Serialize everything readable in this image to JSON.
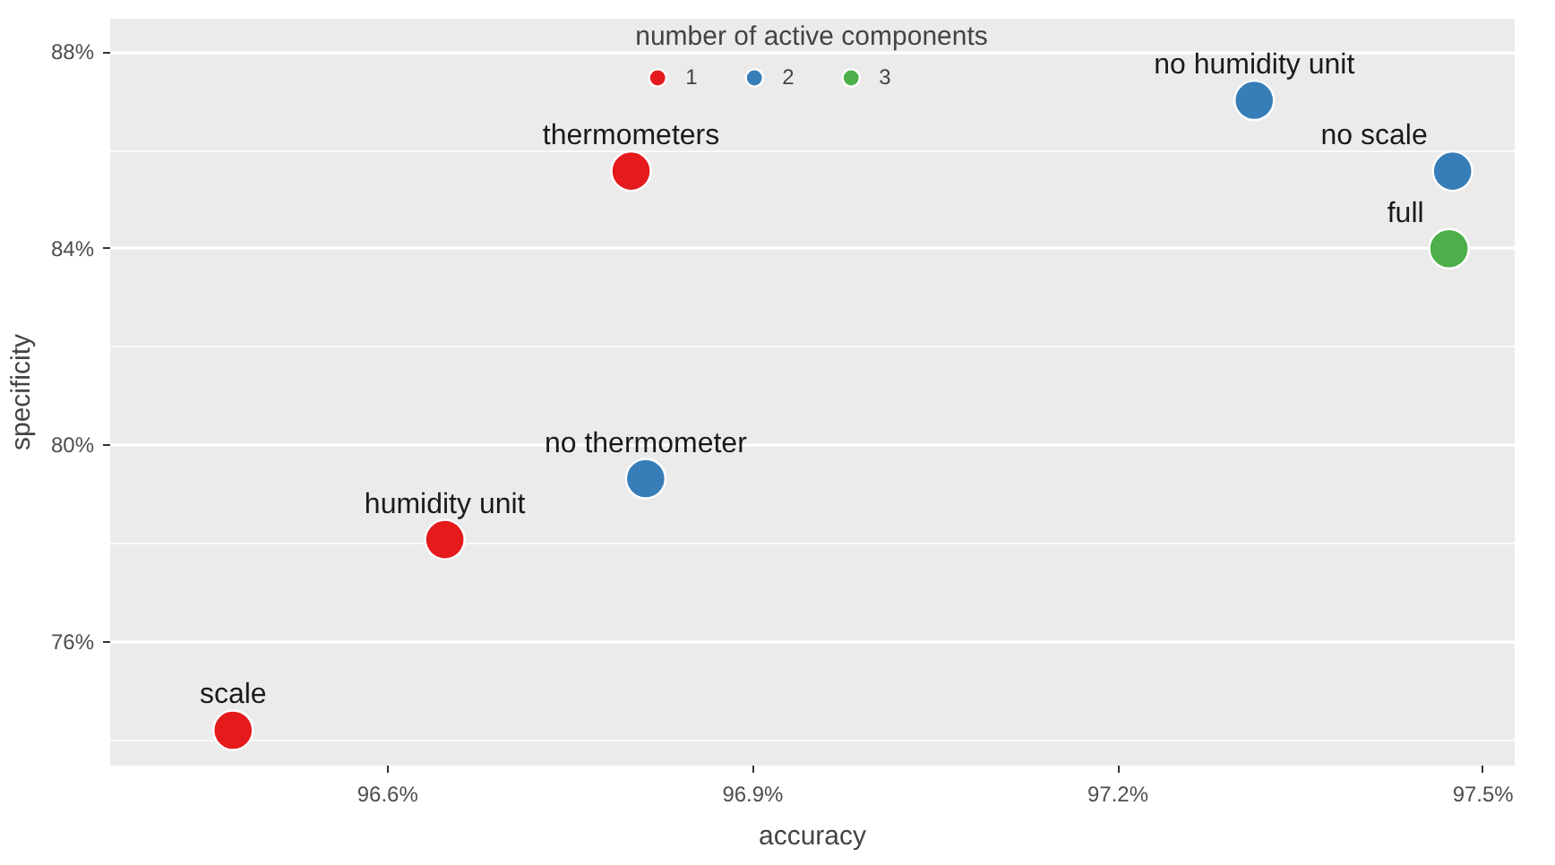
{
  "chart_data": {
    "type": "scatter",
    "xlabel": "accuracy",
    "ylabel": "specificity",
    "legend_title": "number of active components",
    "legend": "top",
    "grid": true,
    "marker": "circle",
    "xlim": [
      96.372,
      97.526
    ],
    "ylim": [
      73.48,
      88.68
    ],
    "xticks": [
      {
        "value": 96.6,
        "label": "96.6%"
      },
      {
        "value": 96.9,
        "label": "96.9%"
      },
      {
        "value": 97.2,
        "label": "97.2%"
      },
      {
        "value": 97.5,
        "label": "97.5%"
      }
    ],
    "yticks": [
      {
        "value": 76,
        "label": "76%"
      },
      {
        "value": 80,
        "label": "80%"
      },
      {
        "value": 84,
        "label": "84%"
      },
      {
        "value": 88,
        "label": "88%"
      }
    ],
    "series": [
      {
        "name": "1",
        "color": "#e41a1c",
        "x": [
          96.473,
          96.647,
          96.8
        ],
        "values": [
          74.2,
          78.08,
          85.58
        ]
      },
      {
        "name": "2",
        "color": "#377eb8",
        "x": [
          96.812,
          97.312,
          97.475
        ],
        "values": [
          79.32,
          87.02,
          85.58
        ]
      },
      {
        "name": "3",
        "color": "#4daf4a",
        "x": [
          97.472
        ],
        "values": [
          84.0
        ]
      }
    ],
    "annotations": [
      {
        "text": "scale",
        "x": 96.473,
        "y": 74.2
      },
      {
        "text": "humidity unit",
        "x": 96.647,
        "y": 78.08
      },
      {
        "text": "thermometers",
        "x": 96.8,
        "y": 85.58
      },
      {
        "text": "no thermometer",
        "x": 96.812,
        "y": 79.32
      },
      {
        "text": "no humidity unit",
        "x": 97.312,
        "y": 87.02
      },
      {
        "text": "no scale",
        "x": 97.475,
        "y": 85.58
      },
      {
        "text": "full",
        "x": 97.472,
        "y": 84.0
      }
    ]
  }
}
